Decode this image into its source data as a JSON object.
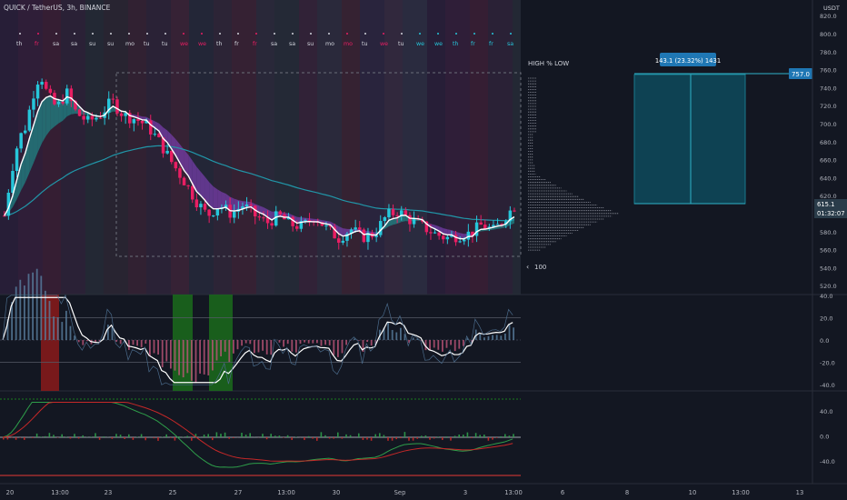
{
  "header": {
    "symbol_line": "QUICK / TetherUS, 3h, BINANCE"
  },
  "price_axis": {
    "currency": "USDT",
    "top_label": "820.0",
    "labels": [
      "800.0",
      "780.0",
      "760.0",
      "740.0",
      "720.0",
      "700.0",
      "680.0",
      "660.0",
      "640.0",
      "620.0",
      "600.0",
      "580.0",
      "560.0",
      "540.0",
      "520.0"
    ],
    "last_price": "615.1",
    "countdown": "01:32:07"
  },
  "osc1_axis": {
    "labels": [
      "40.0",
      "20.0",
      "0.0",
      "-20.0",
      "-40.0"
    ]
  },
  "osc2_axis": {
    "labels": [
      "40.0",
      "0.0",
      "-40.0"
    ]
  },
  "time_axis": {
    "labels": [
      "20",
      "13:00",
      "23",
      "25",
      "27",
      "13:00",
      "30",
      "Sep",
      "3",
      "13:00",
      "6",
      "8",
      "10",
      "13:00",
      "13"
    ]
  },
  "day_markers": [
    "th",
    "fr",
    "sa",
    "sa",
    "su",
    "su",
    "mo",
    "tu",
    "tu",
    "we",
    "we",
    "th",
    "fr",
    "fr",
    "sa",
    "sa",
    "su",
    "mo",
    "mo",
    "tu",
    "we",
    "tu",
    "we",
    "we",
    "th",
    "fr",
    "fr",
    "sa"
  ],
  "volume_profile": {
    "title": "HIGH % LOW",
    "row_size_label": "100"
  },
  "measure_tool": {
    "label": "143.1 (23.32%) 1431",
    "target_price": "757.0"
  },
  "colors": {
    "background": "#131722",
    "up_candle": "#26c6da",
    "down_candle": "#e91e63",
    "ema_fast": "#ffffff",
    "ema_slow": "#2196a8",
    "measure_fill": "#0e4a5c",
    "measure_label_bg": "#1f77b4",
    "osc_red_zone": "#8b1a1a",
    "osc_green_zone": "#1b6b1b"
  }
}
